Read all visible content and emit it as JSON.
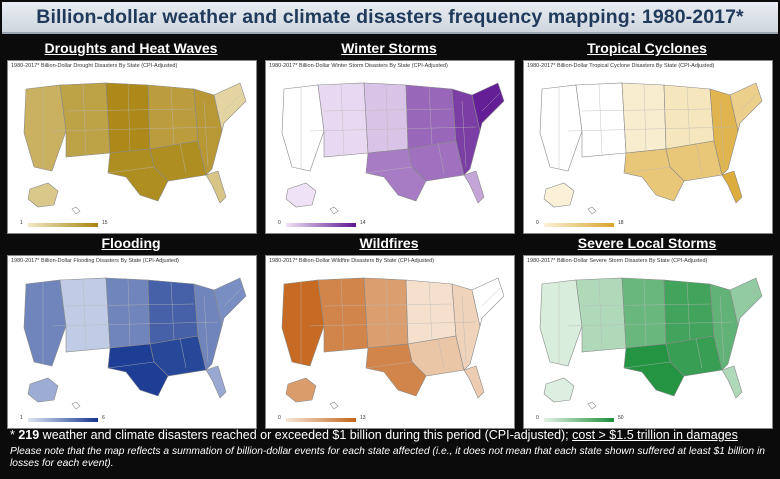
{
  "title": "Billion-dollar weather and climate disasters frequency mapping: 1980-2017*",
  "panels": [
    {
      "id": "droughts",
      "title": "Droughts and Heat Waves",
      "subtitle": "1980-2017* Billion-Dollar Drought Disasters By State (CPI-Adjusted)",
      "legend_min": "1",
      "legend_max": "15",
      "color": "#a8840f",
      "light": "#f2e8c6"
    },
    {
      "id": "winter",
      "title": "Winter Storms",
      "subtitle": "1980-2017* Billion-Dollar Winter Storm Disasters By State (CPI-Adjusted)",
      "legend_min": "0",
      "legend_max": "14",
      "color": "#5e1591",
      "light": "#efe2f6"
    },
    {
      "id": "tropical",
      "title": "Tropical Cyclones",
      "subtitle": "1980-2017* Billion-Dollar Tropical Cyclone Disasters By State (CPI-Adjusted)",
      "legend_min": "0",
      "legend_max": "18",
      "color": "#d9a52b",
      "light": "#fbf1d8"
    },
    {
      "id": "flooding",
      "title": "Flooding",
      "subtitle": "1980-2017* Billion-Dollar Flooding Disasters By State (CPI-Adjusted)",
      "legend_min": "1",
      "legend_max": "6",
      "color": "#13358f",
      "light": "#dfe6f4"
    },
    {
      "id": "wildfires",
      "title": "Wildfires",
      "subtitle": "1980-2017* Billion-Dollar Wildfire Disasters By State (CPI-Adjusted)",
      "legend_min": "0",
      "legend_max": "13",
      "color": "#c4641b",
      "light": "#f7e6d6"
    },
    {
      "id": "severe",
      "title": "Severe Local Storms",
      "subtitle": "1980-2017* Billion-Dollar Severe Storm Disasters By State (CPI-Adjusted)",
      "legend_min": "0",
      "legend_max": "50",
      "color": "#1a8f3a",
      "light": "#e2f2e5"
    }
  ],
  "footnote": {
    "star": "* ",
    "count": "219",
    "text": " weather and climate disasters reached or exceeded $1 billion during this period (CPI-adjusted); ",
    "cost": "cost > $1.5 trillion in damages"
  },
  "note": "Please note that the map reflects a summation of billion-dollar events for each state affected (i.e., it does not mean that each state shown suffered at least $1 billion in losses for each event).",
  "region_levels": {
    "droughts": {
      "west": 0.55,
      "mountain": 0.7,
      "plains": 0.95,
      "midwest": 0.75,
      "south": 0.9,
      "southeast": 0.8,
      "northeast": 0.2,
      "texas": 0.9,
      "florida": 0.35
    },
    "winter": {
      "west": 0.0,
      "mountain": 0.05,
      "plains": 0.15,
      "midwest": 0.6,
      "south": 0.55,
      "southeast": 0.8,
      "northeast": 0.95,
      "texas": 0.5,
      "florida": 0.3
    },
    "tropical": {
      "west": 0.0,
      "mountain": 0.0,
      "plains": 0.05,
      "midwest": 0.15,
      "south": 0.55,
      "southeast": 0.8,
      "northeast": 0.45,
      "texas": 0.55,
      "florida": 0.9
    },
    "flooding": {
      "west": 0.55,
      "mountain": 0.15,
      "plains": 0.55,
      "midwest": 0.75,
      "south": 0.9,
      "southeast": 0.55,
      "northeast": 0.5,
      "texas": 0.95,
      "florida": 0.35
    },
    "wildfires": {
      "west": 0.95,
      "mountain": 0.75,
      "plains": 0.55,
      "midwest": 0.05,
      "south": 0.25,
      "southeast": 0.15,
      "northeast": 0.0,
      "texas": 0.75,
      "florida": 0.2
    },
    "severe": {
      "west": 0.05,
      "mountain": 0.25,
      "plains": 0.6,
      "midwest": 0.8,
      "south": 0.85,
      "southeast": 0.65,
      "northeast": 0.4,
      "texas": 0.95,
      "florida": 0.25
    }
  }
}
